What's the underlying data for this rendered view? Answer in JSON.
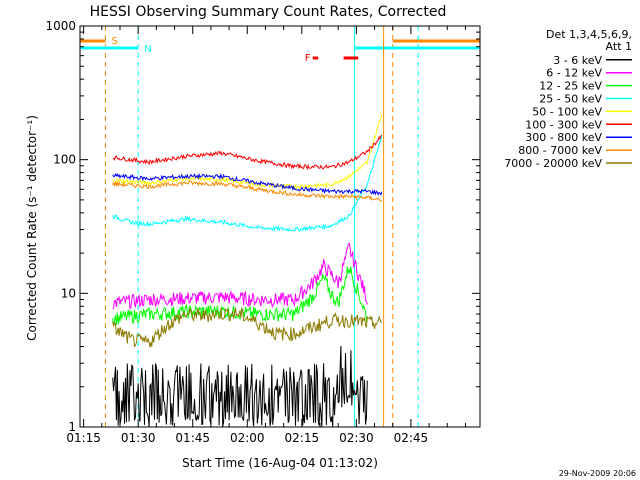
{
  "chart_data": {
    "type": "line",
    "title": "HESSI Observing Summary Count Rates, Corrected",
    "xlabel": "Start Time (16-Aug-04 01:13:02)",
    "ylabel": "Corrected Count Rate (s⁻¹ detector⁻¹)",
    "ylog": true,
    "ylim": [
      1,
      1000
    ],
    "xlim_minutes": [
      1.0,
      111.0
    ],
    "xtick_labels": [
      {
        "t": 2,
        "label": "01:15"
      },
      {
        "t": 17,
        "label": "01:30"
      },
      {
        "t": 32,
        "label": "01:45"
      },
      {
        "t": 47,
        "label": "02:00"
      },
      {
        "t": 62,
        "label": "02:15"
      },
      {
        "t": 77,
        "label": "02:30"
      },
      {
        "t": 92,
        "label": "02:45"
      }
    ],
    "ytick_labels": [
      {
        "v": 1,
        "label": "1"
      },
      {
        "v": 10,
        "label": "10"
      },
      {
        "v": 100,
        "label": "100"
      },
      {
        "v": 1000,
        "label": "1000"
      }
    ],
    "legend": {
      "title_lines": [
        "Det 1,3,4,5,6,9,",
        "Att 1"
      ],
      "placement": "right"
    },
    "series": [
      {
        "name": "3 - 6 keV",
        "color": "#000000",
        "style": "noisy-low",
        "x": [
          10,
          30,
          50,
          65,
          72,
          75,
          78,
          80
        ],
        "values": [
          1.5,
          1.5,
          1.5,
          1.6,
          2.0,
          3.0,
          2.0,
          1.5
        ]
      },
      {
        "name": "6 - 12 keV",
        "color": "#ff00ff",
        "x": [
          10,
          20,
          30,
          40,
          50,
          60,
          65,
          68,
          70,
          72,
          75,
          80
        ],
        "values": [
          8.5,
          9.0,
          9.2,
          9.4,
          9.0,
          9.0,
          12,
          16,
          14,
          12,
          22,
          9
        ]
      },
      {
        "name": "12 - 25 keV",
        "color": "#00ff00",
        "x": [
          10,
          20,
          30,
          40,
          50,
          60,
          65,
          68,
          70,
          72,
          75,
          80
        ],
        "values": [
          6.5,
          7.0,
          7.3,
          7.4,
          7.0,
          7.0,
          9.5,
          13,
          10,
          8.5,
          16,
          6.5
        ]
      },
      {
        "name": "25 - 50 keV",
        "color": "#00ffff",
        "x": [
          10,
          15,
          20,
          30,
          40,
          50,
          60,
          70,
          75,
          80,
          84
        ],
        "values": [
          38,
          34,
          33,
          36,
          34,
          31,
          30,
          32,
          38,
          65,
          150
        ]
      },
      {
        "name": "50 - 100 keV",
        "color": "#ffff00",
        "x": [
          10,
          20,
          30,
          40,
          50,
          60,
          70,
          75,
          80,
          84
        ],
        "values": [
          70,
          67,
          72,
          71,
          65,
          63,
          65,
          75,
          95,
          220
        ]
      },
      {
        "name": "100 - 300 keV",
        "color": "#ff0000",
        "x": [
          10,
          20,
          30,
          40,
          50,
          60,
          70,
          75,
          80,
          84
        ],
        "values": [
          104,
          96,
          106,
          112,
          98,
          89,
          88,
          96,
          115,
          150
        ]
      },
      {
        "name": "300 - 800 keV",
        "color": "#0000ff",
        "x": [
          10,
          20,
          30,
          40,
          50,
          60,
          70,
          75,
          80,
          84
        ],
        "values": [
          76,
          72,
          75,
          75,
          67,
          61,
          58,
          58,
          58,
          56
        ]
      },
      {
        "name": "800 - 7000 keV",
        "color": "#ff8800",
        "x": [
          10,
          20,
          30,
          40,
          50,
          60,
          70,
          75,
          80,
          84
        ],
        "values": [
          66,
          63,
          67,
          66,
          60,
          55,
          53,
          53,
          52,
          50
        ]
      },
      {
        "name": "7000 - 20000 keV",
        "color": "#8b7a00",
        "x": [
          10,
          15,
          20,
          25,
          30,
          35,
          40,
          45,
          50,
          55,
          60,
          65,
          70,
          75,
          80,
          84
        ],
        "values": [
          5.6,
          4.5,
          4.3,
          5.8,
          7.0,
          6.8,
          7.1,
          7.0,
          6.0,
          5.0,
          5.0,
          5.6,
          6.3,
          6.3,
          6.0,
          6.0
        ]
      }
    ],
    "annotations": [
      {
        "name": "S",
        "label": "S",
        "color": "#ff8800",
        "kind": "saa",
        "bar_ranges": [
          [
            1.0,
            8.0
          ],
          [
            87.0,
            111.0
          ]
        ],
        "line_positions": [
          8.0,
          87.0
        ],
        "line_style": "dashed"
      },
      {
        "name": "N",
        "label": "N",
        "color": "#00ffff",
        "kind": "night",
        "bar_ranges": [
          [
            1.0,
            17.0
          ],
          [
            76.5,
            111.0
          ]
        ],
        "line_positions": [
          17.0,
          94.0
        ],
        "solid_positions": [
          1.0,
          76.5
        ]
      },
      {
        "name": "F",
        "label": "F",
        "color": "#ff0000",
        "kind": "flare",
        "bar_ranges": [
          [
            65.0,
            66.5
          ],
          [
            73.5,
            77.5
          ]
        ]
      }
    ],
    "grid": false
  },
  "footer": {
    "date": "29-Nov-2009 20:06"
  }
}
